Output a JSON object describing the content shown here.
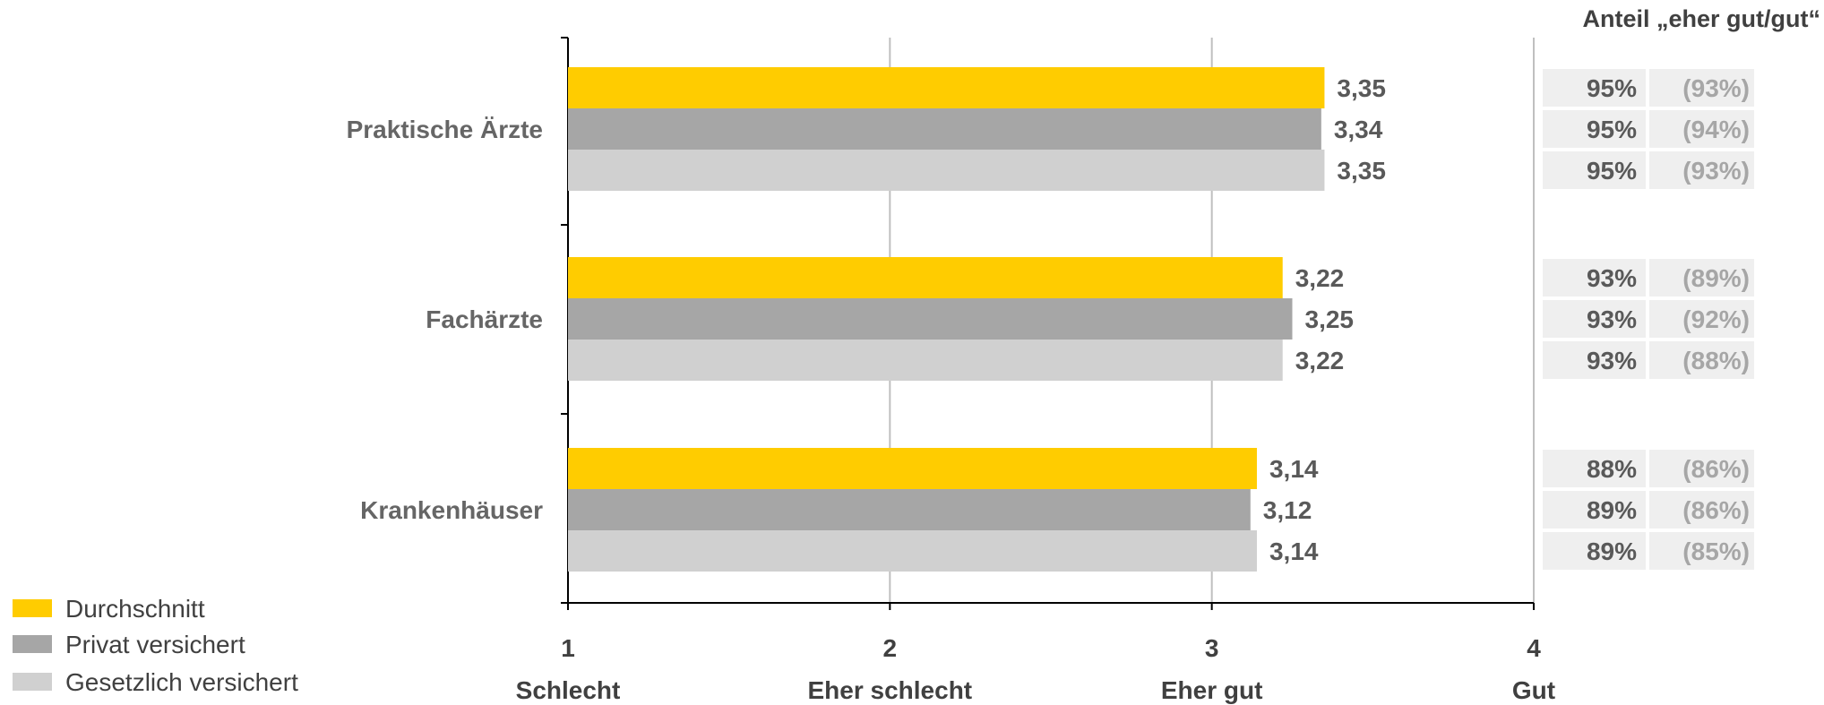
{
  "chart_data": {
    "type": "bar",
    "orientation": "horizontal",
    "categories": [
      "Praktische Ärzte",
      "Fachärzte",
      "Krankenhäuser"
    ],
    "series": [
      {
        "name": "Durchschnitt",
        "color": "#ffcc00",
        "values": [
          3.35,
          3.22,
          3.14
        ],
        "labels": [
          "3,35",
          "3,22",
          "3,14"
        ]
      },
      {
        "name": "Privat versichert",
        "color": "#a6a6a6",
        "values": [
          3.34,
          3.25,
          3.12
        ],
        "labels": [
          "3,34",
          "3,25",
          "3,12"
        ]
      },
      {
        "name": "Gesetzlich versichert",
        "color": "#d0d0d0",
        "values": [
          3.35,
          3.22,
          3.14
        ],
        "labels": [
          "3,35",
          "3,22",
          "3,14"
        ]
      }
    ],
    "xlim": [
      1,
      4
    ],
    "x_ticks": [
      "1",
      "2",
      "3",
      "4"
    ],
    "x_tick_words": [
      "Schlecht",
      "Eher schlecht",
      "Eher gut",
      "Gut"
    ],
    "grid": true,
    "legend_position": "bottom-left",
    "share_table": {
      "title": "Anteil „eher gut/gut“",
      "rows": [
        [
          [
            "95%",
            "(93%)"
          ],
          [
            "95%",
            "(94%)"
          ],
          [
            "95%",
            "(93%)"
          ]
        ],
        [
          [
            "93%",
            "(89%)"
          ],
          [
            "93%",
            "(92%)"
          ],
          [
            "93%",
            "(88%)"
          ]
        ],
        [
          [
            "88%",
            "(86%)"
          ],
          [
            "89%",
            "(86%)"
          ],
          [
            "89%",
            "(85%)"
          ]
        ]
      ]
    }
  }
}
